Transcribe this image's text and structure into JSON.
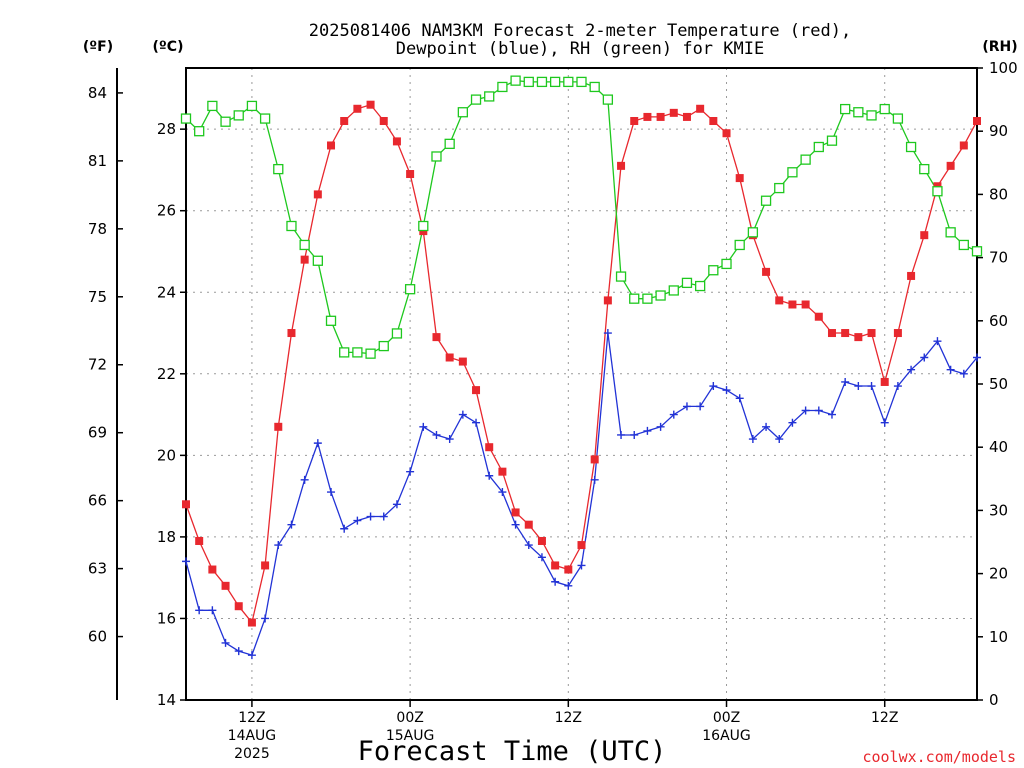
{
  "chart_data": {
    "type": "line",
    "title_line1": "2025081406 NAM3KM Forecast 2-meter Temperature (red),",
    "title_line2": "Dewpoint (blue), RH (green) for KMIE",
    "xlabel": "Forecast Time (UTC)",
    "credit": "coolwx.com/models",
    "units": {
      "fahrenheit": "(ºF)",
      "celsius": "(ºC)",
      "rh": "(RH)"
    },
    "x_range_hours": [
      7,
      67
    ],
    "left_axis_c": {
      "range": [
        14,
        29.5
      ],
      "ticks": [
        14,
        16,
        18,
        20,
        22,
        24,
        26,
        28
      ]
    },
    "far_left_axis_f": {
      "ticks": [
        60,
        63,
        66,
        69,
        72,
        75,
        78,
        81,
        84
      ]
    },
    "right_axis_rh": {
      "range": [
        0,
        100
      ],
      "ticks": [
        0,
        10,
        20,
        30,
        40,
        50,
        60,
        70,
        80,
        90,
        100
      ]
    },
    "x_ticks": [
      {
        "hour": 12,
        "label": "12Z",
        "sub": [
          "14AUG",
          "2025"
        ]
      },
      {
        "hour": 24,
        "label": "00Z",
        "sub": [
          "15AUG"
        ]
      },
      {
        "hour": 36,
        "label": "12Z",
        "sub": []
      },
      {
        "hour": 48,
        "label": "00Z",
        "sub": [
          "16AUG"
        ]
      },
      {
        "hour": 60,
        "label": "12Z",
        "sub": []
      }
    ],
    "grid": true,
    "series": [
      {
        "name": "Temperature",
        "axis": "celsius",
        "color": "#e8282e",
        "marker": "square-filled",
        "x": [
          7,
          8,
          9,
          10,
          11,
          12,
          13,
          14,
          15,
          16,
          17,
          18,
          19,
          20,
          21,
          22,
          23,
          24,
          25,
          26,
          27,
          28,
          29,
          30,
          31,
          32,
          33,
          34,
          35,
          36,
          37,
          38,
          39,
          40,
          41,
          42,
          43,
          44,
          45,
          46,
          47,
          48,
          49,
          50,
          51,
          52,
          53,
          54,
          55,
          56,
          57,
          58,
          59,
          60,
          61,
          62,
          63,
          64,
          65,
          66,
          67
        ],
        "values": [
          18.8,
          17.9,
          17.2,
          16.8,
          16.3,
          15.9,
          17.3,
          20.7,
          23.0,
          24.8,
          26.4,
          27.6,
          28.2,
          28.5,
          28.6,
          28.2,
          27.7,
          26.9,
          25.5,
          22.9,
          22.4,
          22.3,
          21.6,
          20.2,
          19.6,
          18.6,
          18.3,
          17.9,
          17.3,
          17.2,
          17.8,
          19.9,
          23.8,
          27.1,
          28.2,
          28.3,
          28.3,
          28.4,
          28.3,
          28.5,
          28.2,
          27.9,
          26.8,
          25.4,
          24.5,
          23.8,
          23.7,
          23.7,
          23.4,
          23.0,
          23.0,
          22.9,
          23.0,
          21.8,
          23.0,
          24.4,
          25.4,
          26.6,
          27.1,
          27.6,
          28.2
        ]
      },
      {
        "name": "Dewpoint",
        "axis": "celsius",
        "color": "#2233d6",
        "marker": "plus",
        "x": [
          7,
          8,
          9,
          10,
          11,
          12,
          13,
          14,
          15,
          16,
          17,
          18,
          19,
          20,
          21,
          22,
          23,
          24,
          25,
          26,
          27,
          28,
          29,
          30,
          31,
          32,
          33,
          34,
          35,
          36,
          37,
          38,
          39,
          40,
          41,
          42,
          43,
          44,
          45,
          46,
          47,
          48,
          49,
          50,
          51,
          52,
          53,
          54,
          55,
          56,
          57,
          58,
          59,
          60,
          61,
          62,
          63,
          64,
          65,
          66,
          67
        ],
        "values": [
          17.4,
          16.2,
          16.2,
          15.4,
          15.2,
          15.1,
          16.0,
          17.8,
          18.3,
          19.4,
          20.3,
          19.1,
          18.2,
          18.4,
          18.5,
          18.5,
          18.8,
          19.6,
          20.7,
          20.5,
          20.4,
          21.0,
          20.8,
          19.5,
          19.1,
          18.3,
          17.8,
          17.5,
          16.9,
          16.8,
          17.3,
          19.4,
          23.0,
          20.5,
          20.5,
          20.6,
          20.7,
          21.0,
          21.2,
          21.2,
          21.7,
          21.6,
          21.4,
          20.4,
          20.7,
          20.4,
          20.8,
          21.1,
          21.1,
          21.0,
          21.8,
          21.7,
          21.7,
          20.8,
          21.7,
          22.1,
          22.4,
          22.8,
          22.1,
          22.0,
          22.4
        ]
      },
      {
        "name": "RH",
        "axis": "rh",
        "color": "#1ec81e",
        "marker": "square-open",
        "x": [
          7,
          8,
          9,
          10,
          11,
          12,
          13,
          14,
          15,
          16,
          17,
          18,
          19,
          20,
          21,
          22,
          23,
          24,
          25,
          26,
          27,
          28,
          29,
          30,
          31,
          32,
          33,
          34,
          35,
          36,
          37,
          38,
          39,
          40,
          41,
          42,
          43,
          44,
          45,
          46,
          47,
          48,
          49,
          50,
          51,
          52,
          53,
          54,
          55,
          56,
          57,
          58,
          59,
          60,
          61,
          62,
          63,
          64,
          65,
          66,
          67
        ],
        "values": [
          92,
          90,
          94,
          91.5,
          92.5,
          94,
          92,
          84,
          75,
          72,
          69.5,
          60,
          55,
          55,
          54.8,
          56,
          58,
          65,
          75,
          86,
          88,
          93,
          95,
          95.5,
          97,
          98,
          97.8,
          97.8,
          97.8,
          97.8,
          97.8,
          97,
          95,
          67,
          63.5,
          63.5,
          64,
          64.8,
          66,
          65.5,
          68,
          69,
          72,
          74,
          79,
          81,
          83.5,
          85.5,
          87.5,
          88.5,
          93.5,
          93,
          92.5,
          93.5,
          92,
          87.5,
          84,
          80.5,
          74,
          72,
          71
        ]
      }
    ]
  }
}
